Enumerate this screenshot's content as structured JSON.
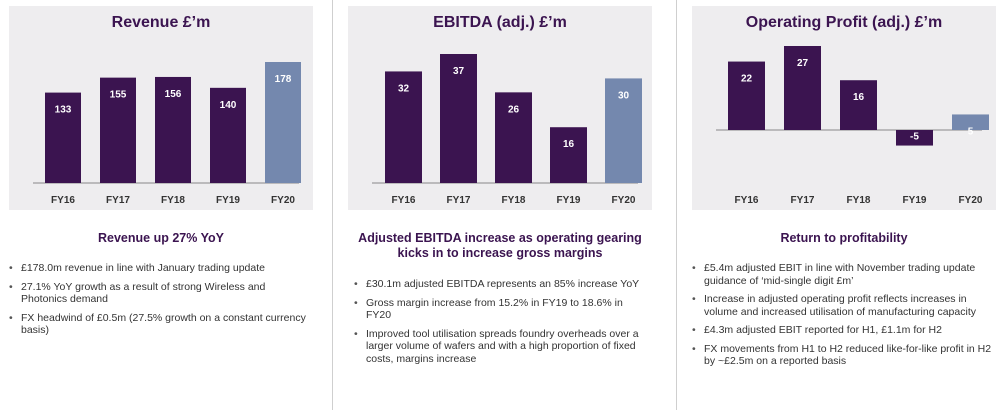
{
  "colors": {
    "bar": "#3b1450",
    "highlight": "#7488ae",
    "box": "#eeedef",
    "heading": "#3b1450"
  },
  "chart_data": [
    {
      "type": "bar",
      "title": "Revenue £’m",
      "categories": [
        "FY16",
        "FY17",
        "FY18",
        "FY19",
        "FY20"
      ],
      "values": [
        133,
        155,
        156,
        140,
        178
      ],
      "labels": [
        "133",
        "155",
        "156",
        "140",
        "178"
      ],
      "highlight_index": 4,
      "ylim": [
        0,
        178
      ]
    },
    {
      "type": "bar",
      "title": "EBITDA (adj.) £’m",
      "categories": [
        "FY16",
        "FY17",
        "FY18",
        "FY19",
        "FY20"
      ],
      "values": [
        32,
        37,
        26,
        16,
        30
      ],
      "labels": [
        "32",
        "37",
        "26",
        "16",
        "30"
      ],
      "highlight_index": 4,
      "ylim": [
        0,
        37
      ]
    },
    {
      "type": "bar",
      "title": "Operating Profit (adj.) £’m",
      "categories": [
        "FY16",
        "FY17",
        "FY18",
        "FY19",
        "FY20"
      ],
      "values": [
        22,
        27,
        16,
        -5,
        5
      ],
      "labels": [
        "22",
        "27",
        "16",
        "-5",
        "5"
      ],
      "highlight_index": 4,
      "ylim": [
        -5,
        27
      ]
    }
  ],
  "sections": [
    {
      "heading": "Revenue up 27% YoY",
      "bullets": [
        "£178.0m revenue in line with January trading update",
        "27.1% YoY growth as a result of strong Wireless and Photonics demand",
        "FX headwind of £0.5m (27.5% growth on a constant currency basis)"
      ]
    },
    {
      "heading": "Adjusted EBITDA increase as operating gearing kicks in to increase gross margins",
      "bullets": [
        "£30.1m adjusted EBITDA represents an 85% increase YoY",
        "Gross margin increase from 15.2% in FY19 to 18.6% in FY20",
        "Improved tool utilisation spreads foundry overheads over a larger volume of wafers and with a high proportion of fixed costs, margins increase"
      ]
    },
    {
      "heading": "Return to profitability",
      "bullets": [
        "£5.4m adjusted EBIT in line with November trading update guidance of ‘mid-single digit £m’",
        "Increase in adjusted operating profit reflects increases in volume and increased utilisation of manufacturing capacity",
        "£4.3m adjusted EBIT reported for H1, £1.1m for H2",
        "FX movements from H1 to H2 reduced like-for-like profit in H2 by ~£2.5m on a reported basis"
      ]
    }
  ]
}
